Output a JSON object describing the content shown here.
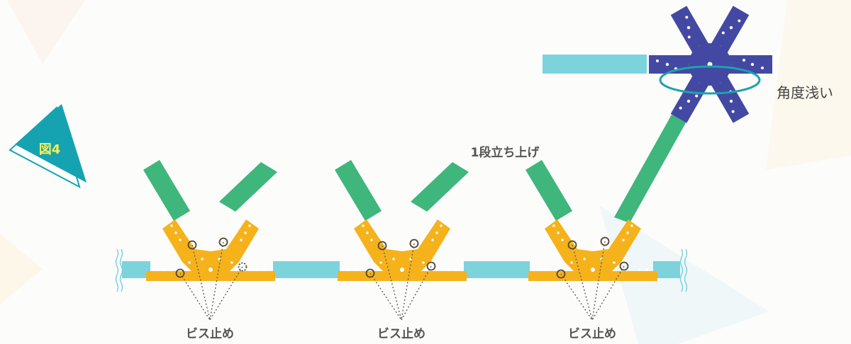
{
  "figure_badge": "図4",
  "labels": {
    "screw_left": "ビス止め",
    "screw_middle": "ビス止め",
    "screw_right": "ビス止め",
    "raise_one_step": "1段立ち上げ",
    "shallow_angle": "角度浅い"
  },
  "colors": {
    "beam_cyan": "#7dd3dc",
    "strut_green": "#3fb67c",
    "joint_orange": "#f5b21b",
    "hub_navy": "#4349a2",
    "ellipse_teal": "#1ba3ad",
    "badge_teal": "#16a3b1",
    "badge_text": "#f3ef5a",
    "label_grey": "#555555"
  },
  "icons": [
    "break-mark-icon",
    "screw-circle-icon",
    "joint-plate-icon",
    "star-hub-icon"
  ]
}
